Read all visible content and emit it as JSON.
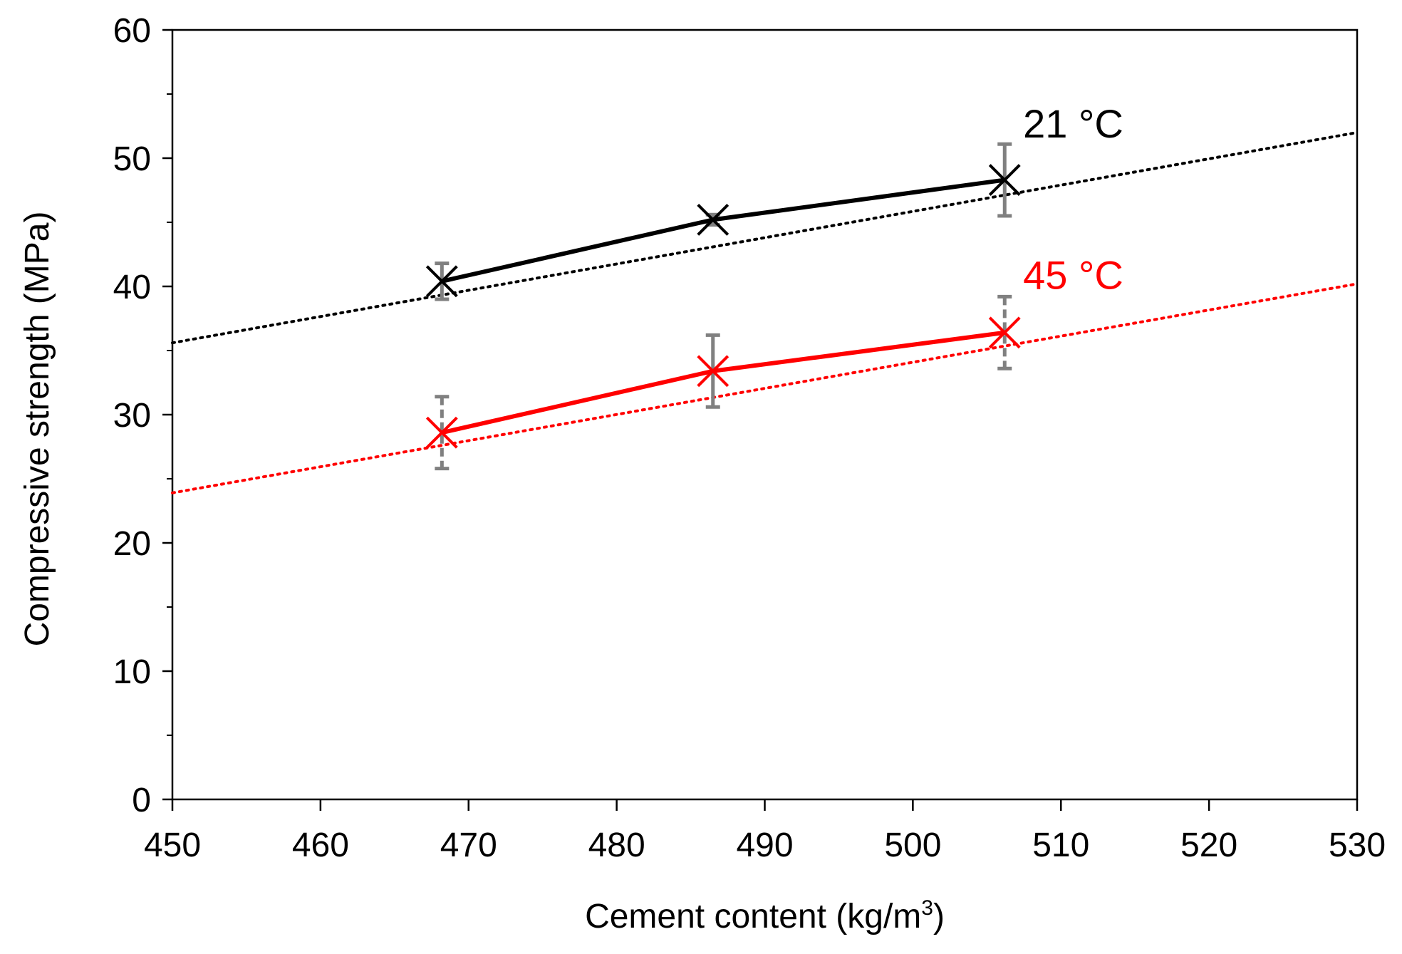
{
  "chart_data": {
    "type": "line",
    "title": "",
    "xlabel": "Cement content (kg/m",
    "xlabel_superscript": "3",
    "xlabel_close": ")",
    "ylabel": "Compressive strength (MPa)",
    "xlim": [
      450,
      530
    ],
    "ylim": [
      0,
      60
    ],
    "x_ticks": [
      450,
      460,
      470,
      480,
      490,
      500,
      510,
      520,
      530
    ],
    "y_ticks": [
      0,
      10,
      20,
      30,
      40,
      50,
      60
    ],
    "y_minor_step": 5,
    "grid": false,
    "series": [
      {
        "name": "21 °C",
        "label": "21 °C",
        "color": "#000000",
        "marker_color": "#000000",
        "x": [
          468.2,
          486.5,
          506.2
        ],
        "y": [
          40.4,
          45.2,
          48.3
        ],
        "error": [
          1.4,
          0.4,
          2.8
        ],
        "trend_x": [
          450,
          530
        ],
        "trend_y": [
          35.6,
          52.0
        ],
        "label_anchor": [
          506.5,
          52.5
        ]
      },
      {
        "name": "45 °C",
        "label": "45 °C",
        "color": "#ff0000",
        "marker_color": "#ff0000",
        "x": [
          468.2,
          486.5,
          506.2
        ],
        "y": [
          28.6,
          33.4,
          36.4
        ],
        "error": [
          2.8,
          2.8,
          2.8
        ],
        "trend_x": [
          450,
          530
        ],
        "trend_y": [
          23.9,
          40.2
        ],
        "label_anchor": [
          506.5,
          40.7
        ]
      }
    ],
    "error_bar_color": "#808080"
  }
}
